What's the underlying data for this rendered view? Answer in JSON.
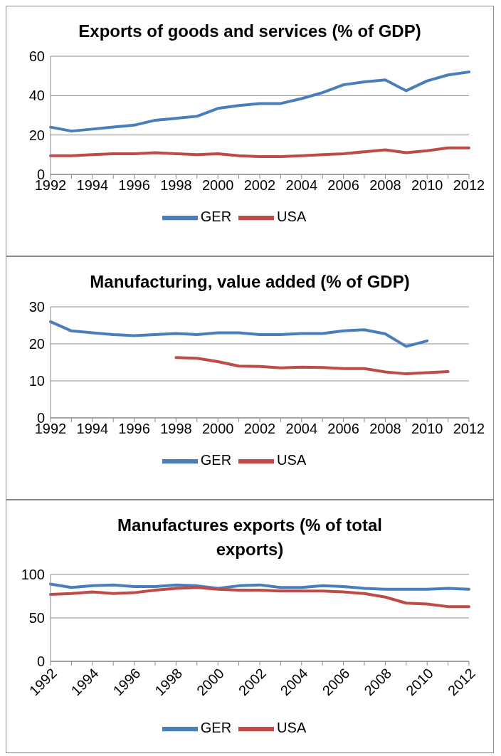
{
  "chart_data": [
    {
      "type": "line",
      "title": "Exports of goods and services (% of GDP)",
      "categories": [
        "1992",
        null,
        "1994",
        null,
        "1996",
        null,
        "1998",
        null,
        "2000",
        null,
        "2002",
        null,
        "2004",
        null,
        "2006",
        null,
        "2008",
        null,
        "2010",
        null,
        "2012"
      ],
      "series": [
        {
          "name": "GER",
          "color": "#4a7ebb",
          "values": [
            24,
            22,
            23,
            24,
            25,
            27.5,
            28.5,
            29.5,
            33.5,
            35,
            36,
            36,
            38.5,
            41.5,
            45.5,
            47,
            48,
            42.5,
            47.5,
            50.5,
            52
          ]
        },
        {
          "name": "USA",
          "color": "#be4b48",
          "values": [
            9.5,
            9.5,
            10,
            10.5,
            10.5,
            11,
            10.5,
            10,
            10.5,
            9.5,
            9,
            9,
            9.5,
            10,
            10.5,
            11.5,
            12.5,
            11,
            12,
            13.5,
            13.5
          ]
        }
      ],
      "ylim": [
        0,
        60
      ],
      "yticks": [
        0,
        20,
        40,
        60
      ],
      "grid": "y",
      "legend": "bottom",
      "marker": "none",
      "line_style": "solid"
    },
    {
      "type": "line",
      "title": "Manufacturing, value added (% of GDP)",
      "categories": [
        "1992",
        null,
        "1994",
        null,
        "1996",
        null,
        "1998",
        null,
        "2000",
        null,
        "2002",
        null,
        "2004",
        null,
        "2006",
        null,
        "2008",
        null,
        "2010",
        null,
        "2012"
      ],
      "series": [
        {
          "name": "GER",
          "color": "#4a7ebb",
          "values": [
            26,
            23.5,
            23,
            22.5,
            22.2,
            22.5,
            22.8,
            22.5,
            23,
            23,
            22.5,
            22.5,
            22.8,
            22.8,
            23.5,
            23.8,
            22.7,
            19.3,
            20.8,
            null,
            null
          ]
        },
        {
          "name": "USA",
          "color": "#be4b48",
          "values": [
            null,
            null,
            null,
            null,
            null,
            null,
            16.3,
            16.1,
            15.2,
            14,
            13.9,
            13.5,
            13.7,
            13.6,
            13.3,
            13.3,
            12.4,
            11.9,
            12.2,
            12.5,
            null
          ]
        }
      ],
      "ylim": [
        0,
        30
      ],
      "yticks": [
        0,
        10,
        20,
        30
      ],
      "grid": "y",
      "legend": "bottom",
      "marker": "none",
      "line_style": "solid"
    },
    {
      "type": "line",
      "title": "Manufactures exports (% of total exports)",
      "categories": [
        "1992",
        null,
        "1994",
        null,
        "1996",
        null,
        "1998",
        null,
        "2000",
        null,
        "2002",
        null,
        "2004",
        null,
        "2006",
        null,
        "2008",
        null,
        "2010",
        null,
        "2012"
      ],
      "series": [
        {
          "name": "GER",
          "color": "#4a7ebb",
          "values": [
            89,
            85,
            87,
            88,
            86,
            86,
            88,
            87,
            84,
            87,
            88,
            85,
            85,
            87,
            86,
            84,
            83,
            83,
            83,
            84,
            83
          ]
        },
        {
          "name": "USA",
          "color": "#be4b48",
          "values": [
            77,
            78,
            80,
            78,
            79,
            82,
            84,
            85,
            83,
            82,
            82,
            81,
            81,
            81,
            80,
            78,
            74,
            67,
            66,
            63,
            63
          ]
        }
      ],
      "ylim": [
        0,
        100
      ],
      "yticks": [
        0,
        50,
        100
      ],
      "grid": "y",
      "legend": "bottom",
      "marker": "none",
      "line_style": "solid"
    }
  ]
}
